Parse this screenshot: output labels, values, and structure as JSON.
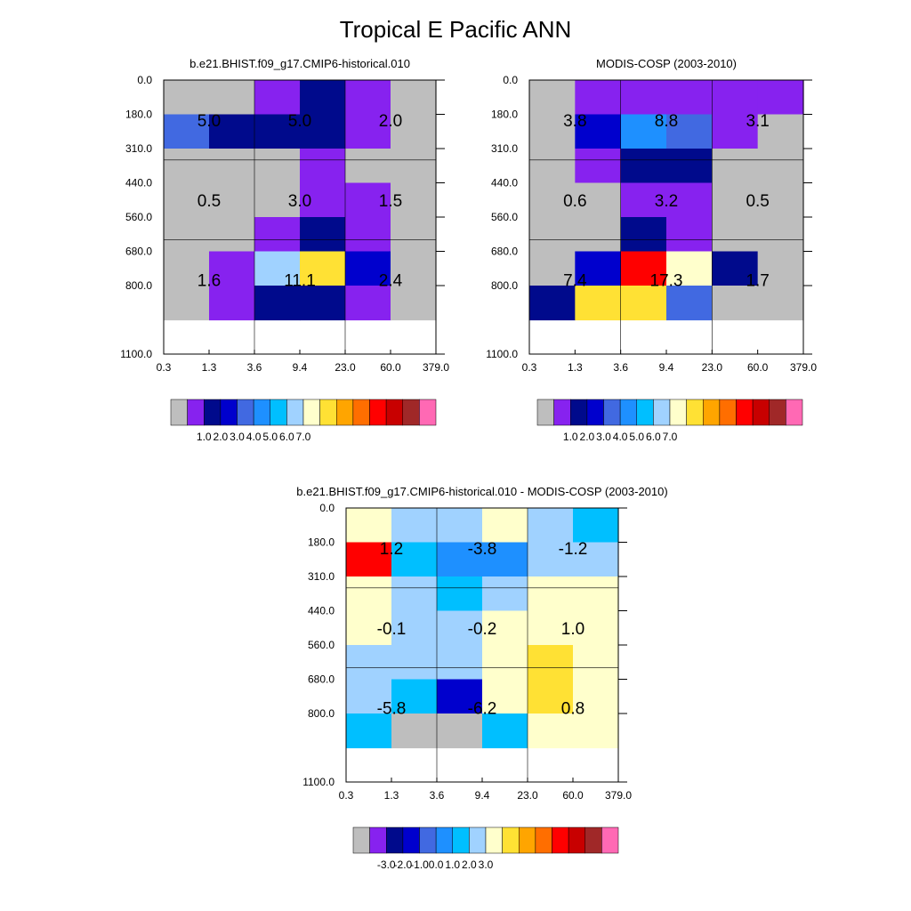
{
  "figure": {
    "title": "Tropical E Pacific ANN"
  },
  "palettes": {
    "abs": [
      "#bebebe",
      "#8722ef",
      "#000a8c",
      "#0000cd",
      "#4169e1",
      "#1e90ff",
      "#00bfff",
      "#a0d2ff",
      "#ffffcc",
      "#ffe134",
      "#ffa500",
      "#ff6e00",
      "#ff0000",
      "#c80000",
      "#a02828",
      "#ff69b4"
    ],
    "diff": [
      "#bebebe",
      "#8722ef",
      "#000a8c",
      "#0000cd",
      "#4169e1",
      "#1e90ff",
      "#00bfff",
      "#a0d2ff",
      "#ffffcc",
      "#ffe134",
      "#ffa500",
      "#ff6e00",
      "#ff0000",
      "#c80000",
      "#a02828",
      "#ff69b4"
    ]
  },
  "chart_data": [
    {
      "id": "model",
      "type": "heatmap",
      "title": "b.e21.BHIST.f09_g17.CMIP6-historical.010",
      "xlabel": "",
      "ylabel": "",
      "x_tick_labels": [
        "0.3",
        "1.3",
        "3.6",
        "9.4",
        "23.0",
        "60.0",
        "379.0"
      ],
      "y_tick_labels": [
        "0.0",
        "180.0",
        "310.0",
        "440.0",
        "560.0",
        "680.0",
        "800.0",
        "1100.0"
      ],
      "cells": [
        [
          0,
          0,
          1,
          2,
          1,
          0
        ],
        [
          4,
          2,
          2,
          2,
          1,
          0
        ],
        [
          0,
          0,
          0,
          1,
          0,
          0
        ],
        [
          0,
          0,
          0,
          1,
          1,
          0
        ],
        [
          0,
          0,
          1,
          2,
          1,
          0
        ],
        [
          0,
          1,
          7,
          9,
          3,
          0
        ],
        [
          0,
          1,
          2,
          2,
          1,
          0
        ]
      ],
      "box_labels": [
        {
          "col": 0,
          "row": 0,
          "text": "5.0"
        },
        {
          "col": 1,
          "row": 0,
          "text": "5.0"
        },
        {
          "col": 2,
          "row": 0,
          "text": "2.0"
        },
        {
          "col": 0,
          "row": 1,
          "text": "0.5"
        },
        {
          "col": 1,
          "row": 1,
          "text": "3.0"
        },
        {
          "col": 2,
          "row": 1,
          "text": "1.5"
        },
        {
          "col": 0,
          "row": 2,
          "text": "1.6"
        },
        {
          "col": 1,
          "row": 2,
          "text": "11.1"
        },
        {
          "col": 2,
          "row": 2,
          "text": "2.4"
        }
      ],
      "legend": {
        "palette": "abs",
        "labels": [
          "1.0",
          "2.0",
          "3.0",
          "4.0",
          "5.0",
          "6.0",
          "7.0"
        ]
      }
    },
    {
      "id": "obs",
      "type": "heatmap",
      "title": "MODIS-COSP (2003-2010)",
      "xlabel": "",
      "ylabel": "",
      "x_tick_labels": [
        "0.3",
        "1.3",
        "3.6",
        "9.4",
        "23.0",
        "60.0",
        "379.0"
      ],
      "y_tick_labels": [
        "0.0",
        "180.0",
        "310.0",
        "440.0",
        "560.0",
        "680.0",
        "800.0",
        "1100.0"
      ],
      "cells": [
        [
          0,
          1,
          1,
          1,
          1,
          1
        ],
        [
          0,
          3,
          5,
          4,
          1,
          0
        ],
        [
          0,
          1,
          2,
          2,
          0,
          0
        ],
        [
          0,
          0,
          1,
          1,
          0,
          0
        ],
        [
          0,
          0,
          2,
          1,
          0,
          0
        ],
        [
          0,
          3,
          12,
          8,
          2,
          0
        ],
        [
          2,
          9,
          9,
          4,
          0,
          0
        ]
      ],
      "box_labels": [
        {
          "col": 0,
          "row": 0,
          "text": "3.8"
        },
        {
          "col": 1,
          "row": 0,
          "text": "8.8"
        },
        {
          "col": 2,
          "row": 0,
          "text": "3.1"
        },
        {
          "col": 0,
          "row": 1,
          "text": "0.6"
        },
        {
          "col": 1,
          "row": 1,
          "text": "3.2"
        },
        {
          "col": 2,
          "row": 1,
          "text": "0.5"
        },
        {
          "col": 0,
          "row": 2,
          "text": "7.4"
        },
        {
          "col": 1,
          "row": 2,
          "text": "17.3"
        },
        {
          "col": 2,
          "row": 2,
          "text": "1.7"
        }
      ],
      "legend": {
        "palette": "abs",
        "labels": [
          "1.0",
          "2.0",
          "3.0",
          "4.0",
          "5.0",
          "6.0",
          "7.0"
        ]
      }
    },
    {
      "id": "diff",
      "type": "heatmap",
      "title": "b.e21.BHIST.f09_g17.CMIP6-historical.010 - MODIS-COSP (2003-2010)",
      "xlabel": "",
      "ylabel": "",
      "x_tick_labels": [
        "0.3",
        "1.3",
        "3.6",
        "9.4",
        "23.0",
        "60.0",
        "379.0"
      ],
      "y_tick_labels": [
        "0.0",
        "180.0",
        "310.0",
        "440.0",
        "560.0",
        "680.0",
        "800.0",
        "1100.0"
      ],
      "cells": [
        [
          8,
          7,
          7,
          8,
          7,
          6
        ],
        [
          12,
          6,
          5,
          5,
          7,
          7
        ],
        [
          8,
          7,
          6,
          7,
          8,
          8
        ],
        [
          8,
          7,
          7,
          8,
          8,
          8
        ],
        [
          7,
          7,
          7,
          8,
          9,
          8
        ],
        [
          7,
          6,
          3,
          8,
          9,
          8
        ],
        [
          6,
          0,
          0,
          6,
          8,
          8
        ]
      ],
      "box_labels": [
        {
          "col": 0,
          "row": 0,
          "text": "1.2"
        },
        {
          "col": 1,
          "row": 0,
          "text": "-3.8"
        },
        {
          "col": 2,
          "row": 0,
          "text": "-1.2"
        },
        {
          "col": 0,
          "row": 1,
          "text": "-0.1"
        },
        {
          "col": 1,
          "row": 1,
          "text": "-0.2"
        },
        {
          "col": 2,
          "row": 1,
          "text": "1.0"
        },
        {
          "col": 0,
          "row": 2,
          "text": "-5.8"
        },
        {
          "col": 1,
          "row": 2,
          "text": "-6.2"
        },
        {
          "col": 2,
          "row": 2,
          "text": "0.8"
        }
      ],
      "legend": {
        "palette": "diff",
        "labels": [
          "-3.0",
          "-2.0",
          "-1.0",
          "0.0",
          "1.0",
          "2.0",
          "3.0"
        ]
      }
    }
  ]
}
